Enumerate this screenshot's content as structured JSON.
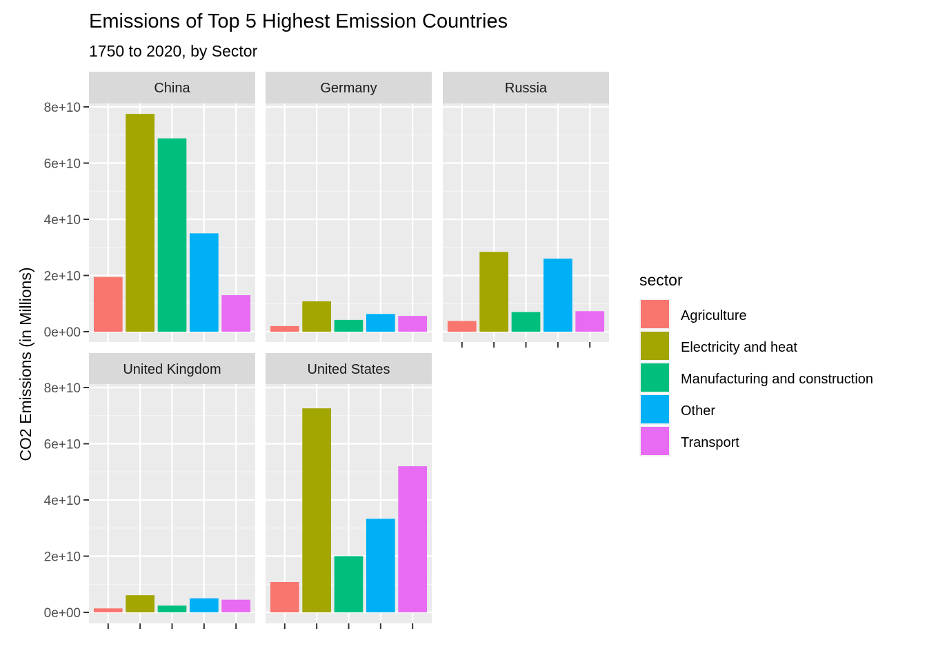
{
  "chart_data": {
    "type": "bar",
    "title": "Emissions of Top 5 Highest Emission Countries",
    "subtitle": "1750 to 2020, by Sector",
    "xlabel": "",
    "ylabel": "CO2 Emissions (in Millions)",
    "ylim": [
      0,
      80000000000
    ],
    "y_ticks": [
      0,
      20000000000,
      40000000000,
      60000000000,
      80000000000
    ],
    "y_tick_labels": [
      "0e+00",
      "2e+10",
      "4e+10",
      "6e+10",
      "8e+10"
    ],
    "grid": true,
    "legend_position": "right",
    "legend": {
      "title": "sector",
      "entries": [
        {
          "label": "Agriculture",
          "color": "#F8766D"
        },
        {
          "label": "Electricity and heat",
          "color": "#A3A500"
        },
        {
          "label": "Manufacturing and construction",
          "color": "#00BF7D"
        },
        {
          "label": "Other",
          "color": "#00B0F6"
        },
        {
          "label": "Transport",
          "color": "#E76BF3"
        }
      ]
    },
    "categories": [
      "Agriculture",
      "Electricity and heat",
      "Manufacturing and construction",
      "Other",
      "Transport"
    ],
    "panels": [
      {
        "name": "China",
        "values": [
          19500000000,
          77500000000,
          68800000000,
          35000000000,
          13000000000
        ]
      },
      {
        "name": "Germany",
        "values": [
          2000000000,
          10800000000,
          4200000000,
          6300000000,
          5600000000
        ]
      },
      {
        "name": "Russia",
        "values": [
          3800000000,
          28400000000,
          7000000000,
          26000000000,
          7300000000
        ]
      },
      {
        "name": "United Kingdom",
        "values": [
          1400000000,
          6100000000,
          2400000000,
          5000000000,
          4500000000
        ]
      },
      {
        "name": "United States",
        "values": [
          10800000000,
          72600000000,
          20000000000,
          33300000000,
          52000000000
        ]
      }
    ]
  }
}
